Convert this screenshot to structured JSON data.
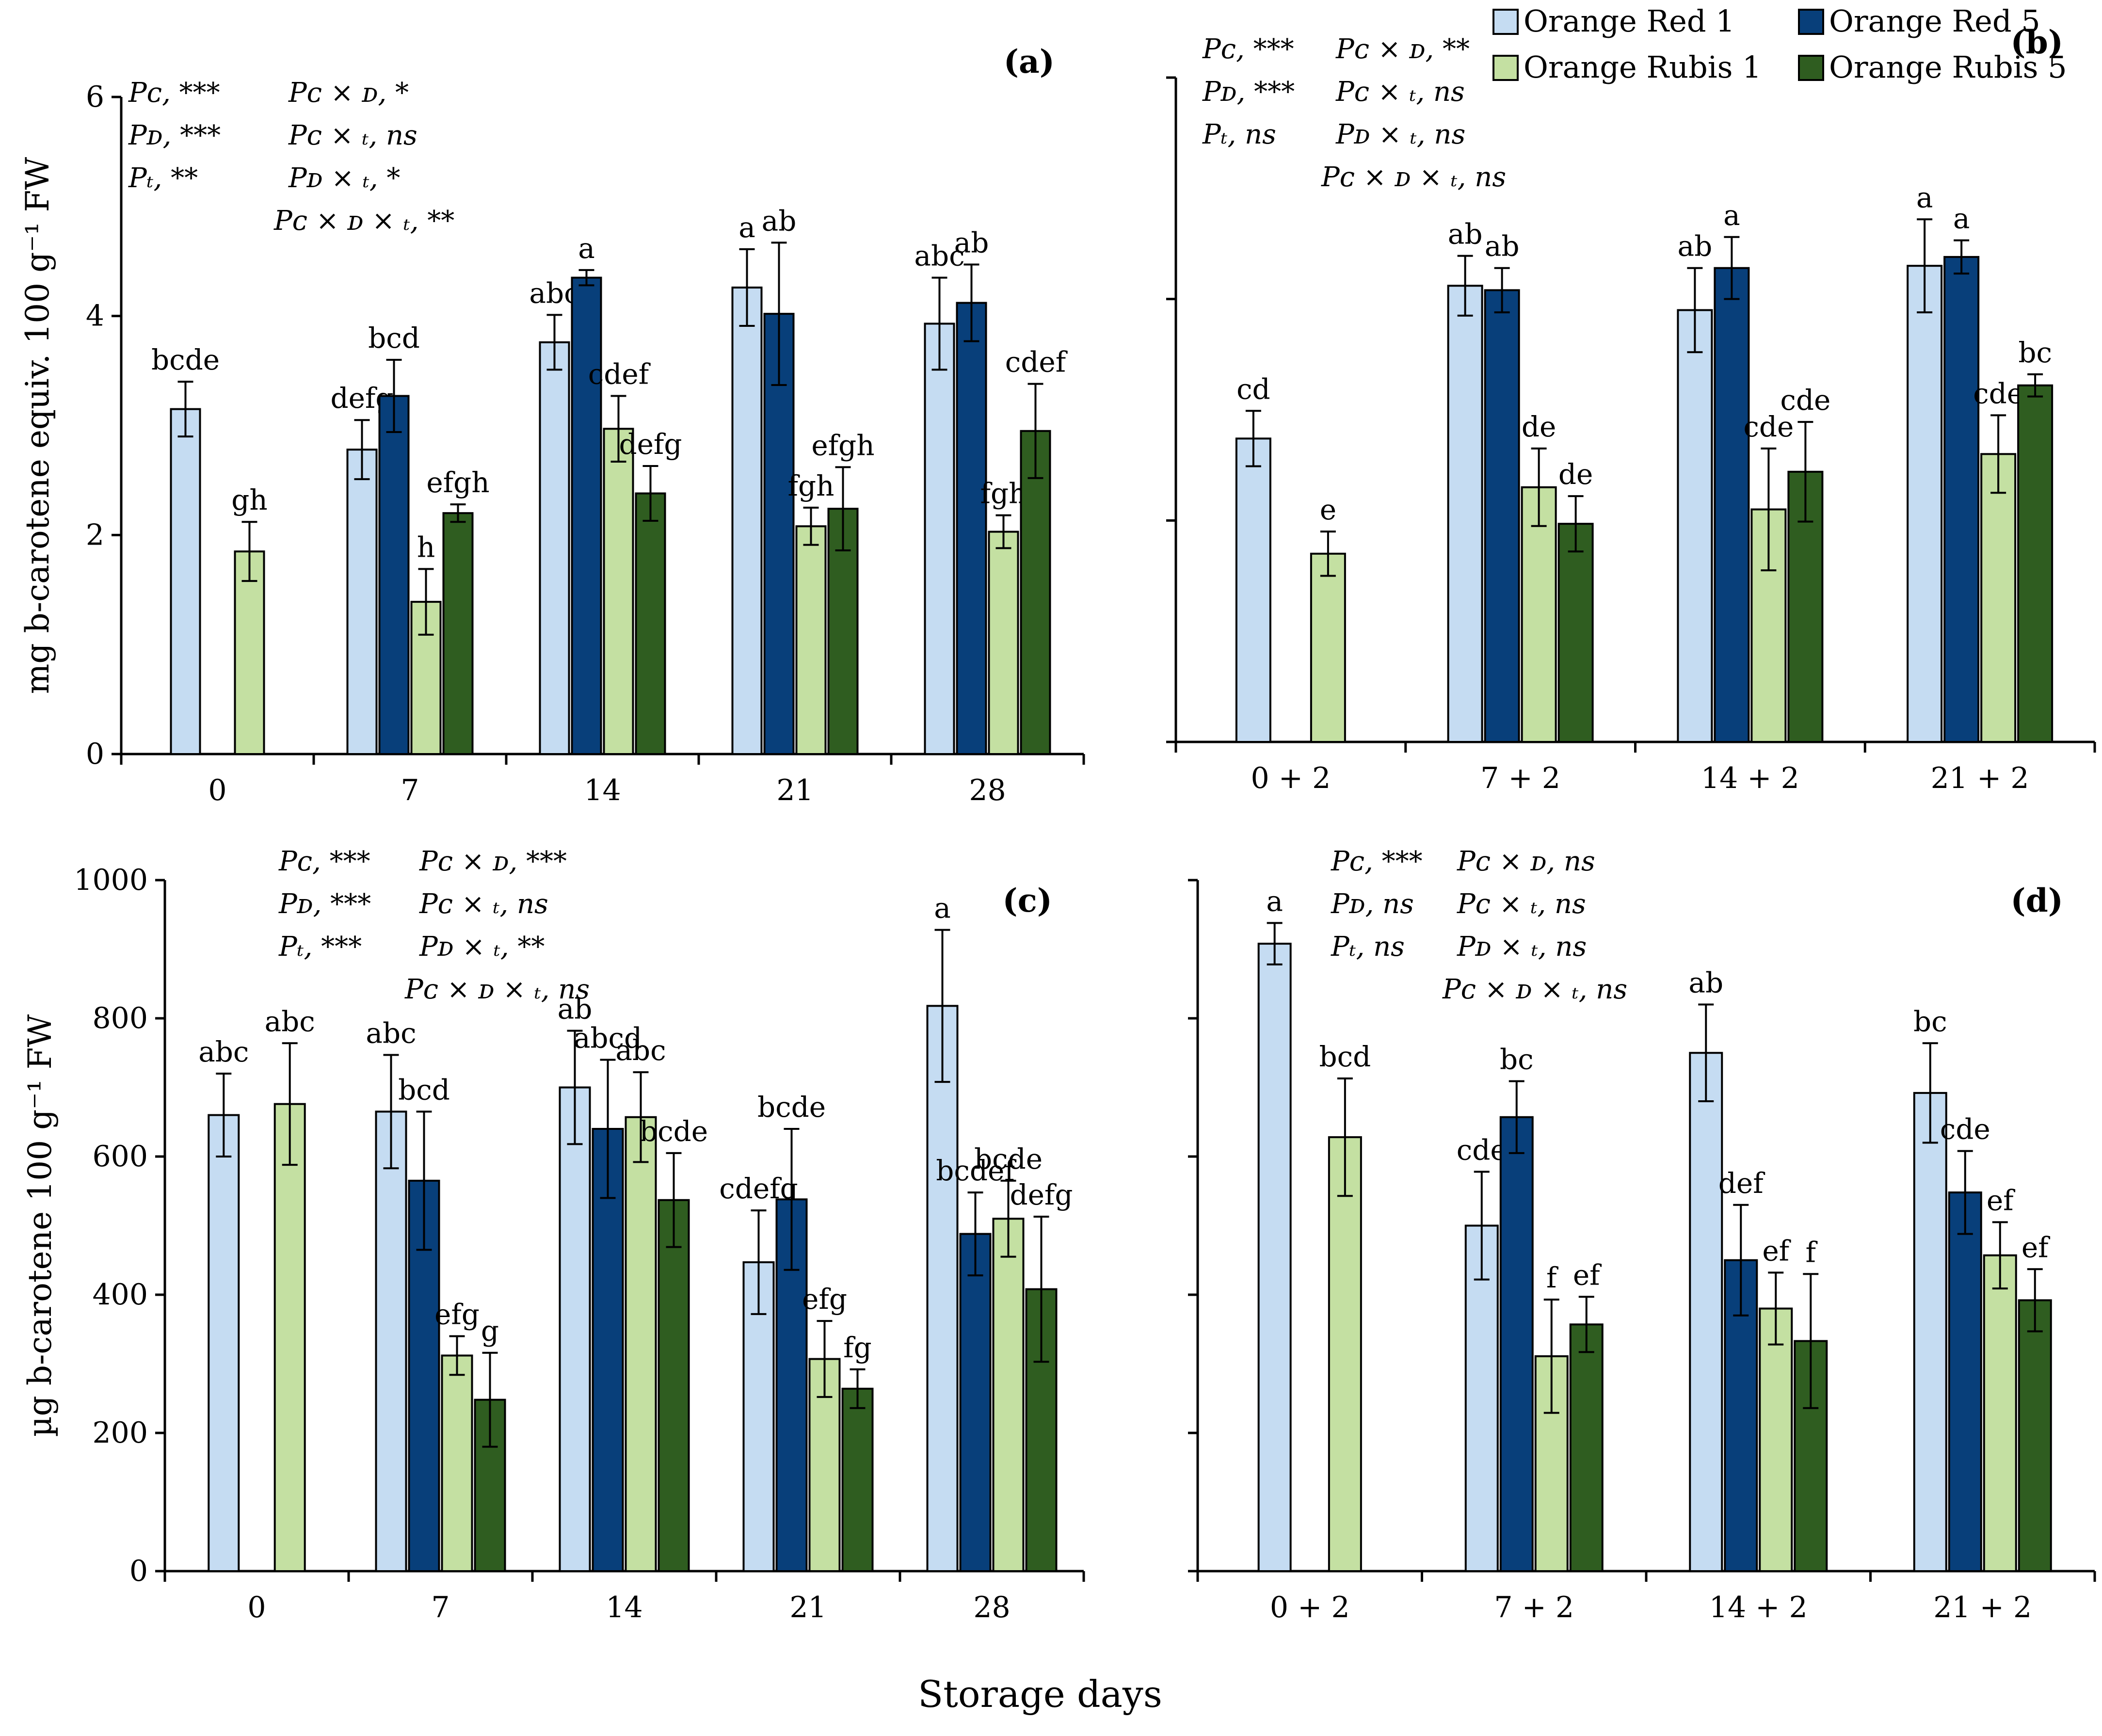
{
  "figure": {
    "xlabel": "Storage days",
    "legend": [
      {
        "name": "Orange Red 1",
        "color": "#c5dcf2"
      },
      {
        "name": "Orange Red 5",
        "color": "#083f7a"
      },
      {
        "name": "Orange Rubis 1",
        "color": "#c4e0a2"
      },
      {
        "name": "Orange Rubis 5",
        "color": "#2f5d20"
      }
    ]
  },
  "chart_data": [
    {
      "id": "a",
      "type": "bar",
      "panel_label": "(a)",
      "ylabel": "mg b-carotene equiv. 100 g⁻¹ FW",
      "ylim": [
        0,
        6
      ],
      "yticks": [
        "0",
        "2",
        "4",
        "6"
      ],
      "categories": [
        "0",
        "7",
        "14",
        "21",
        "28"
      ],
      "series": [
        {
          "name": "Orange Red 1",
          "values": [
            3.15,
            2.78,
            3.76,
            4.26,
            3.93
          ],
          "errors": [
            0.25,
            0.27,
            0.25,
            0.35,
            0.42
          ],
          "letters": [
            "bcde",
            "defg",
            "abc",
            "a",
            "abc"
          ]
        },
        {
          "name": "Orange Red 5",
          "values": [
            null,
            3.27,
            4.35,
            4.02,
            4.12
          ],
          "errors": [
            null,
            0.33,
            0.07,
            0.65,
            0.35
          ],
          "letters": [
            "",
            "bcd",
            "a",
            "ab",
            "ab"
          ]
        },
        {
          "name": "Orange Rubis 1",
          "values": [
            1.85,
            1.39,
            2.97,
            2.08,
            2.03
          ],
          "errors": [
            0.27,
            0.3,
            0.3,
            0.17,
            0.15
          ],
          "letters": [
            "gh",
            "h",
            "cdef",
            "fgh",
            "fgh"
          ]
        },
        {
          "name": "Orange Rubis 5",
          "values": [
            null,
            2.2,
            2.38,
            2.24,
            2.95
          ],
          "errors": [
            null,
            0.08,
            0.25,
            0.38,
            0.43
          ],
          "letters": [
            "",
            "efgh",
            "defg",
            "efgh",
            "cdef"
          ]
        }
      ],
      "stats": [
        "Pᴄ, ***",
        "Pᴅ, ***",
        "Pₜ, **",
        "Pᴄ × ᴅ, *",
        "Pᴄ × ₜ, ns",
        "Pᴅ × ₜ, *",
        "Pᴄ × ᴅ × ₜ, **"
      ]
    },
    {
      "id": "b",
      "type": "bar",
      "panel_label": "(b)",
      "ylabel": "",
      "ylim": [
        0,
        6
      ],
      "yticks": [],
      "categories": [
        "0 + 2",
        "7 + 2",
        "14 + 2",
        "21 + 2"
      ],
      "series": [
        {
          "name": "Orange Red 1",
          "values": [
            2.74,
            4.12,
            3.9,
            4.3
          ],
          "errors": [
            0.25,
            0.27,
            0.38,
            0.42
          ],
          "letters": [
            "cd",
            "ab",
            "ab",
            "a"
          ]
        },
        {
          "name": "Orange Red 5",
          "values": [
            null,
            4.08,
            4.28,
            4.38
          ],
          "errors": [
            null,
            0.2,
            0.28,
            0.15
          ],
          "letters": [
            "",
            "ab",
            "a",
            "a"
          ]
        },
        {
          "name": "Orange Rubis 1",
          "values": [
            1.7,
            2.3,
            2.1,
            2.6
          ],
          "errors": [
            0.2,
            0.35,
            0.55,
            0.35
          ],
          "letters": [
            "e",
            "de",
            "cde",
            "cde"
          ]
        },
        {
          "name": "Orange Rubis 5",
          "values": [
            null,
            1.97,
            2.44,
            3.22
          ],
          "errors": [
            null,
            0.25,
            0.45,
            0.1
          ],
          "letters": [
            "",
            "de",
            "cde",
            "bc"
          ]
        }
      ],
      "stats": [
        "Pᴄ, ***",
        "Pᴅ, ***",
        "Pₜ, ns",
        "Pᴄ × ᴅ, **",
        "Pᴄ × ₜ, ns",
        "Pᴅ × ₜ, ns",
        "Pᴄ × ᴅ × ₜ, ns"
      ]
    },
    {
      "id": "c",
      "type": "bar",
      "panel_label": "(c)",
      "ylabel": "µg b-carotene 100 g⁻¹ FW",
      "ylim": [
        0,
        1000
      ],
      "yticks": [
        "0",
        "200",
        "400",
        "600",
        "800",
        "1000"
      ],
      "categories": [
        "0",
        "7",
        "14",
        "21",
        "28"
      ],
      "series": [
        {
          "name": "Orange Red 1",
          "values": [
            660,
            665,
            700,
            447,
            818
          ],
          "errors": [
            60,
            82,
            82,
            75,
            110
          ],
          "letters": [
            "abc",
            "abc",
            "ab",
            "cdefg",
            "a"
          ]
        },
        {
          "name": "Orange Red 5",
          "values": [
            null,
            565,
            640,
            538,
            488
          ],
          "errors": [
            null,
            100,
            100,
            102,
            60
          ],
          "letters": [
            "",
            "bcd",
            "abcd",
            "bcde",
            "bcdef"
          ]
        },
        {
          "name": "Orange Rubis 1",
          "values": [
            676,
            312,
            657,
            307,
            510
          ],
          "errors": [
            88,
            28,
            65,
            55,
            55
          ],
          "letters": [
            "abc",
            "efg",
            "abc",
            "efg",
            "bcde"
          ]
        },
        {
          "name": "Orange Rubis 5",
          "values": [
            null,
            248,
            537,
            264,
            408
          ],
          "errors": [
            null,
            68,
            68,
            28,
            105
          ],
          "letters": [
            "",
            "g",
            "bcde",
            "fg",
            "defg"
          ]
        }
      ],
      "stats": [
        "Pᴄ, ***",
        "Pᴅ, ***",
        "Pₜ, ***",
        "Pᴄ × ᴅ, ***",
        "Pᴄ × ₜ, ns",
        "Pᴅ × ₜ, **",
        "Pᴄ × ᴅ × ₜ, ns"
      ]
    },
    {
      "id": "d",
      "type": "bar",
      "panel_label": "(d)",
      "ylabel": "",
      "ylim": [
        0,
        1000
      ],
      "yticks": [],
      "categories": [
        "0 + 2",
        "7 + 2",
        "14 + 2",
        "21 + 2"
      ],
      "series": [
        {
          "name": "Orange Red 1",
          "values": [
            908,
            500,
            750,
            692
          ],
          "errors": [
            30,
            78,
            70,
            72
          ],
          "letters": [
            "a",
            "cde",
            "ab",
            "bc"
          ]
        },
        {
          "name": "Orange Red 5",
          "values": [
            null,
            657,
            450,
            548
          ],
          "errors": [
            null,
            52,
            80,
            60
          ],
          "letters": [
            "",
            "bc",
            "def",
            "cde"
          ]
        },
        {
          "name": "Orange Rubis 1",
          "values": [
            628,
            311,
            380,
            457
          ],
          "errors": [
            85,
            82,
            52,
            48
          ],
          "letters": [
            "bcd",
            "f",
            "ef",
            "ef"
          ]
        },
        {
          "name": "Orange Rubis 5",
          "values": [
            null,
            357,
            333,
            392
          ],
          "errors": [
            null,
            40,
            97,
            45
          ],
          "letters": [
            "",
            "ef",
            "f",
            "ef"
          ]
        }
      ],
      "stats": [
        "Pᴄ, ***",
        "Pᴅ, ns",
        "Pₜ, ns",
        "Pᴄ × ᴅ, ns",
        "Pᴄ × ₜ, ns",
        "Pᴅ × ₜ, ns",
        "Pᴄ × ᴅ × ₜ, ns"
      ]
    }
  ]
}
